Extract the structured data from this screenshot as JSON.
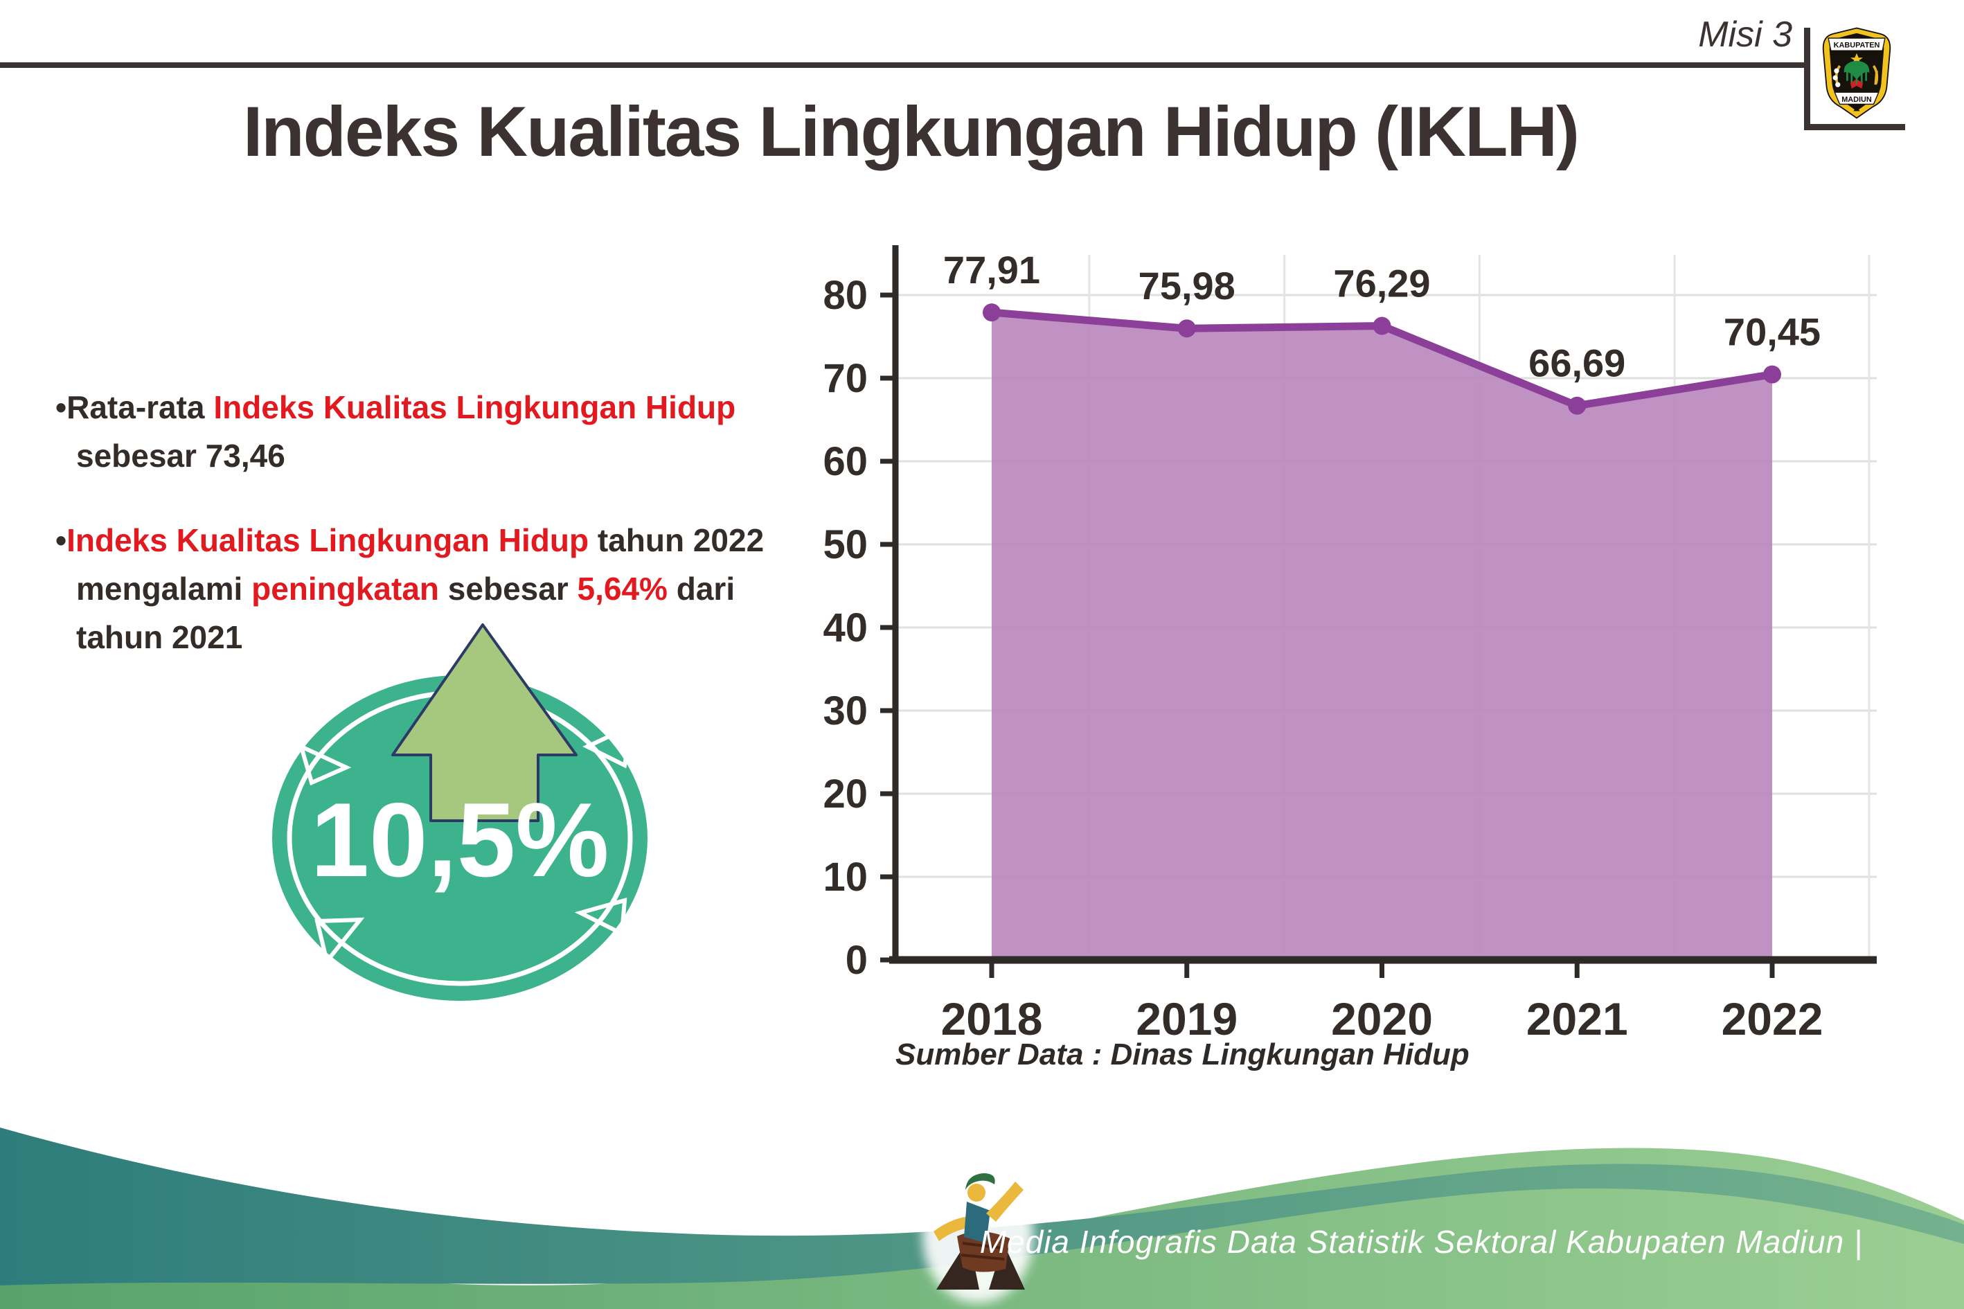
{
  "page": {
    "misi": "Misi 3",
    "title": "Indeks Kualitas Lingkungan Hidup (IKLH)"
  },
  "logo": {
    "top": "KABUPATEN",
    "bottom": "MADIUN"
  },
  "bullets": [
    {
      "runs": [
        {
          "t": "Rata-rata ",
          "c": "dark"
        },
        {
          "t": "Indeks Kualitas Lingkungan Hidup",
          "c": "red"
        },
        {
          "t": " sebesar 73,46",
          "c": "dark"
        }
      ]
    },
    {
      "runs": [
        {
          "t": "Indeks Kualitas Lingkungan Hidup",
          "c": "red"
        },
        {
          "t": " tahun 2022 mengalami ",
          "c": "dark"
        },
        {
          "t": "peningkatan",
          "c": "red"
        },
        {
          "t": " sebesar ",
          "c": "dark"
        },
        {
          "t": "5,64%",
          "c": "red"
        },
        {
          "t": " dari tahun 2021",
          "c": "dark"
        }
      ]
    }
  ],
  "badge": {
    "value": "10,5%",
    "direction": "up-arrow"
  },
  "chart_data": {
    "type": "area",
    "title": "",
    "xlabel": "",
    "ylabel": "",
    "categories": [
      "2018",
      "2019",
      "2020",
      "2021",
      "2022"
    ],
    "values": [
      77.91,
      75.98,
      76.29,
      66.69,
      70.45
    ],
    "value_labels": [
      "77,91",
      "75,98",
      "76,29",
      "66,69",
      "70,45"
    ],
    "y_ticks": [
      0,
      10,
      20,
      30,
      40,
      50,
      60,
      70,
      80
    ],
    "ylim": [
      0,
      85
    ],
    "grid": "on",
    "legend": "none",
    "source": "Sumber Data : Dinas Lingkungan Hidup",
    "colors": {
      "area": "#b886bd",
      "line": "#8c3f98",
      "axis": "#2e2a28",
      "label": "#332c29",
      "grid": "#dfdfdf"
    }
  },
  "footer": {
    "credit": "Media Infografis Data Statistik Sektoral Kabupaten Madiun |"
  },
  "colors": {
    "accent_red": "#e2191f",
    "text_dark": "#332c29",
    "badge_teal": "#3cb28d",
    "arrow_green": "#a5c87e",
    "arrow_outline": "#2b3a66",
    "footer_teal_left": "#2e7d7c",
    "footer_teal_right": "#74b18e",
    "footer_green_left": "#58a36d",
    "footer_green_right": "#9bce93"
  }
}
